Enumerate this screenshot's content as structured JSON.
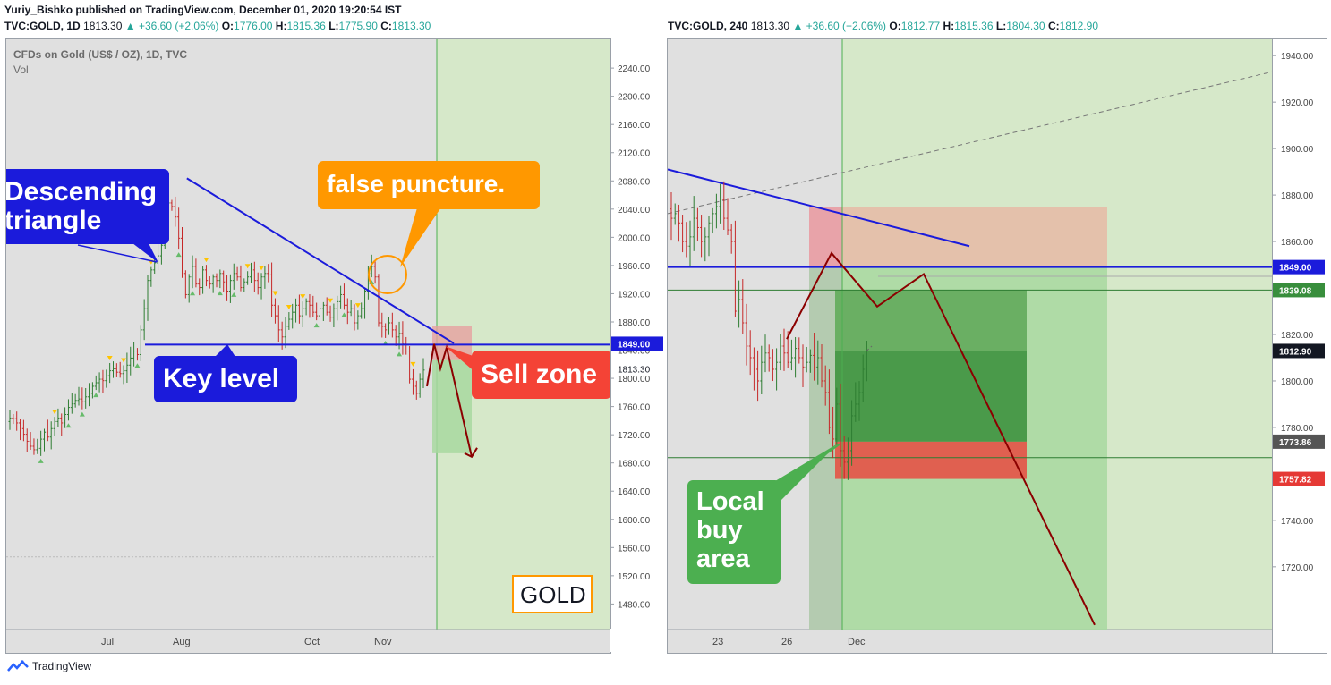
{
  "header": {
    "publisher_line": "Yuriy_Bishko published on TradingView.com, December 01, 2020 19:20:54 IST",
    "left": {
      "symbol": "TVC:GOLD, 1D",
      "price": "1813.30",
      "change": "▲ +36.60 (+2.06%)",
      "o_label": "O:",
      "o": "1776.00",
      "h_label": "H:",
      "h": "1815.36",
      "l_label": "L:",
      "l": "1775.90",
      "c_label": "C:",
      "c": "1813.30"
    },
    "right": {
      "symbol": "TVC:GOLD, 240",
      "price": "1813.30",
      "change": "▲ +36.60 (+2.06%)",
      "o_label": "O:",
      "o": "1812.77",
      "h_label": "H:",
      "h": "1815.36",
      "l_label": "L:",
      "l": "1804.30",
      "c_label": "C:",
      "c": "1812.90"
    }
  },
  "footer": {
    "brand": "TradingView"
  },
  "colors": {
    "up": "#26a69a",
    "down_candle": "#c62828",
    "up_candle": "#2e7d32",
    "trendline": "#1b1bdb",
    "forecast": "#8b0000",
    "green_zone": "#d6e8c9",
    "sell_zone": "#e6a0a0",
    "target_zone": "#a8d8a0",
    "callout_blue": "#1b1bdb",
    "callout_orange": "#ff9800",
    "callout_red": "#f44336",
    "callout_green": "#4caf50"
  },
  "chart_data": [
    {
      "type": "candlestick",
      "title": "CFDs on Gold (US$ / OZ), 1D, TVC",
      "subtitle": "Vol",
      "x_tick_labels": [
        "Jul",
        "Aug",
        "Oct",
        "Nov"
      ],
      "y_ticks": [
        2240,
        2200,
        2160,
        2120,
        2080,
        2040,
        2000,
        1960,
        1920,
        1880,
        1840,
        1800,
        1760,
        1720,
        1680,
        1640,
        1600,
        1560,
        1520,
        1480
      ],
      "ylim": [
        1445,
        2282
      ],
      "price_labels": [
        {
          "text": "1849.00",
          "value": 1849,
          "style": "blue"
        },
        {
          "text": "1813.30",
          "value": 1813.3,
          "style": "plain"
        }
      ],
      "approx_closes": [
        1745,
        1744,
        1738,
        1730,
        1722,
        1712,
        1705,
        1700,
        1702,
        1715,
        1725,
        1718,
        1730,
        1740,
        1745,
        1738,
        1750,
        1760,
        1765,
        1770,
        1772,
        1768,
        1775,
        1780,
        1790,
        1795,
        1800,
        1798,
        1805,
        1812,
        1815,
        1810,
        1808,
        1812,
        1820,
        1830,
        1840,
        1835,
        1870,
        1900,
        1940,
        1955,
        1965,
        1975,
        1990,
        2025,
        2050,
        2045,
        2030,
        2000,
        1950,
        1920,
        1945,
        1960,
        1935,
        1930,
        1955,
        1940,
        1935,
        1945,
        1940,
        1950,
        1938,
        1925,
        1940,
        1950,
        1945,
        1930,
        1938,
        1945,
        1955,
        1940,
        1930,
        1945,
        1950,
        1948,
        1905,
        1890,
        1870,
        1860,
        1875,
        1885,
        1895,
        1905,
        1890,
        1900,
        1910,
        1905,
        1895,
        1890,
        1900,
        1905,
        1895,
        1888,
        1900,
        1910,
        1920,
        1905,
        1895,
        1900,
        1880,
        1890,
        1900,
        1925,
        1950,
        1960,
        1945,
        1880,
        1875,
        1870,
        1880,
        1870,
        1860,
        1865,
        1850,
        1840,
        1800,
        1790,
        1780,
        1800,
        1813
      ],
      "annotations": {
        "descending_triangle": "Descending\ntriangle",
        "false_puncture": "false puncture.",
        "key_level": "Key level",
        "sell_zone": "Sell zone",
        "watermark": "GOLD"
      },
      "key_level": 1849,
      "trendline": [
        {
          "index": 48,
          "value": 2085
        },
        {
          "index": 120,
          "value": 1855
        }
      ],
      "forecast_path": [
        1790,
        1850,
        1815,
        1845,
        1690
      ],
      "sell_box": [
        1827,
        1875
      ],
      "target_box": [
        1695,
        1827
      ]
    },
    {
      "type": "candlestick",
      "title": "TVC:GOLD, 240",
      "x_tick_labels": [
        "23",
        "26",
        "Dec"
      ],
      "y_ticks": [
        1940,
        1920,
        1900,
        1880,
        1860,
        1840,
        1820,
        1800,
        1780,
        1740,
        1720
      ],
      "ylim": [
        1693,
        1947
      ],
      "price_labels": [
        {
          "text": "1849.00",
          "value": 1849,
          "style": "blue"
        },
        {
          "text": "1839.08",
          "value": 1839.08,
          "style": "green"
        },
        {
          "text": "1812.90",
          "value": 1812.9,
          "style": "dark"
        },
        {
          "text": "1773.86",
          "value": 1773.86,
          "style": "gray"
        },
        {
          "text": "1757.82",
          "value": 1757.82,
          "style": "red"
        }
      ],
      "approx_closes": [
        1870,
        1872,
        1868,
        1860,
        1858,
        1862,
        1870,
        1866,
        1860,
        1862,
        1868,
        1872,
        1875,
        1878,
        1870,
        1865,
        1860,
        1830,
        1835,
        1825,
        1815,
        1810,
        1805,
        1800,
        1808,
        1812,
        1810,
        1805,
        1808,
        1815,
        1812,
        1808,
        1810,
        1814,
        1810,
        1806,
        1808,
        1811,
        1806,
        1810,
        1800,
        1795,
        1780,
        1775,
        1790,
        1770,
        1765,
        1770,
        1785,
        1790,
        1795,
        1805,
        1813
      ],
      "annotations": {
        "local_buy_area": "Local\nbuy\narea"
      },
      "key_level": 1849,
      "entry": 1839.08,
      "current": 1812.9,
      "take_profit_zone": [
        1773.86,
        1839.08
      ],
      "stop_zone": [
        1757.82,
        1773.86
      ],
      "sell_zone": [
        1849,
        1875
      ],
      "forecast_path": [
        1818,
        1855,
        1832,
        1846,
        1695
      ]
    }
  ]
}
